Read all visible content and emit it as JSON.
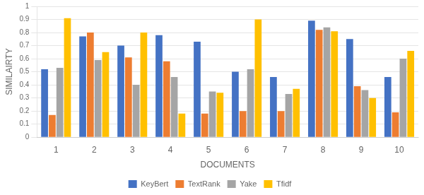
{
  "chart_data": {
    "type": "bar",
    "categories": [
      "1",
      "2",
      "3",
      "4",
      "5",
      "6",
      "7",
      "8",
      "9",
      "10"
    ],
    "series": [
      {
        "name": "KeyBert",
        "color": "#4472C4",
        "values": [
          0.52,
          0.77,
          0.7,
          0.78,
          0.73,
          0.5,
          0.46,
          0.89,
          0.75,
          0.46
        ]
      },
      {
        "name": "TextRank",
        "color": "#ED7D31",
        "values": [
          0.17,
          0.8,
          0.61,
          0.58,
          0.18,
          0.2,
          0.2,
          0.82,
          0.39,
          0.19
        ]
      },
      {
        "name": "Yake",
        "color": "#A5A5A5",
        "values": [
          0.53,
          0.59,
          0.4,
          0.46,
          0.35,
          0.52,
          0.33,
          0.84,
          0.36,
          0.6
        ]
      },
      {
        "name": "Tfidf",
        "color": "#FFC000",
        "values": [
          0.91,
          0.65,
          0.8,
          0.18,
          0.34,
          0.9,
          0.37,
          0.81,
          0.3,
          0.66
        ]
      }
    ],
    "x_label": "DOCUMENTS",
    "y_label": "SIMILAIRTY",
    "ylim": [
      0,
      1.0
    ],
    "yticks": [
      0,
      0.1,
      0.2,
      0.3,
      0.4,
      0.5,
      0.6,
      0.7,
      0.8,
      0.9,
      1
    ],
    "grid": true,
    "legend": "bottom"
  }
}
